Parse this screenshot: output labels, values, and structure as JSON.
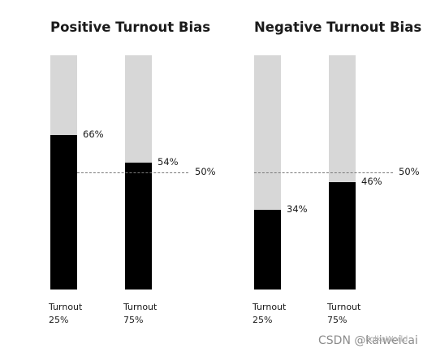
{
  "chart_data": [
    {
      "type": "bar",
      "title": "Positive Turnout Bias",
      "categories": [
        [
          "Turnout",
          "25%"
        ],
        [
          "Turnout",
          "75%"
        ]
      ],
      "values": [
        66,
        54
      ],
      "value_labels": [
        "66%",
        "54%"
      ],
      "reference_line": {
        "value": 50,
        "label": "50%",
        "style": "dashed"
      },
      "ylim": [
        0,
        100
      ],
      "colors": {
        "fill": "#000000",
        "track": "#d7d7d7",
        "reference": "#7a7a7a"
      }
    },
    {
      "type": "bar",
      "title": "Negative Turnout Bias",
      "categories": [
        [
          "Turnout",
          "25%"
        ],
        [
          "Turnout",
          "75%"
        ]
      ],
      "values": [
        34,
        46
      ],
      "value_labels": [
        "34%",
        "46%"
      ],
      "reference_line": {
        "value": 50,
        "label": "50%",
        "style": "dashed"
      },
      "ylim": [
        0,
        100
      ],
      "colors": {
        "fill": "#000000",
        "track": "#d7d7d7",
        "reference": "#7a7a7a"
      }
    }
  ],
  "watermark": {
    "text": "CSDN @kaiweicai",
    "overlay": "PolkaWorld"
  }
}
